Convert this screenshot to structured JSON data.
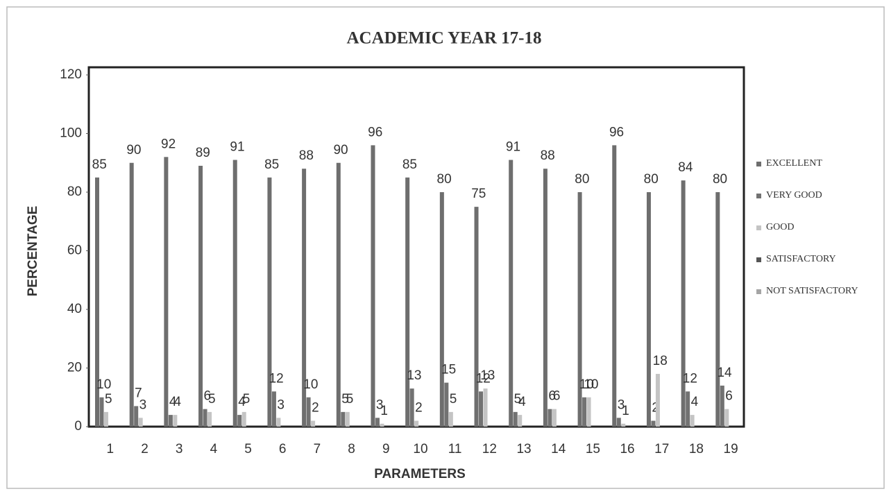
{
  "chart_data": {
    "type": "bar",
    "title": "ACADEMIC YEAR 17-18",
    "x_label": "PARAMETERS",
    "y_label": "PERCENTAGE",
    "categories": [
      "1",
      "2",
      "3",
      "4",
      "5",
      "6",
      "7",
      "8",
      "9",
      "10",
      "11",
      "12",
      "13",
      "14",
      "15",
      "16",
      "17",
      "18",
      "19"
    ],
    "series": [
      {
        "name": "EXCELLENT",
        "color": "#6e6e6e",
        "values": [
          85,
          90,
          92,
          89,
          91,
          85,
          88,
          90,
          96,
          85,
          80,
          75,
          91,
          88,
          80,
          96,
          80,
          84,
          80
        ]
      },
      {
        "name": "VERY GOOD",
        "color": "#727272",
        "values": [
          10,
          7,
          4,
          6,
          4,
          12,
          10,
          5,
          3,
          13,
          15,
          12,
          5,
          6,
          10,
          3,
          2,
          12,
          14
        ]
      },
      {
        "name": "GOOD",
        "color": "#c4c4c4",
        "values": [
          5,
          3,
          4,
          5,
          5,
          3,
          2,
          5,
          1,
          2,
          5,
          13,
          4,
          6,
          10,
          1,
          18,
          4,
          6
        ]
      },
      {
        "name": "SATISFACTORY",
        "color": "#555555",
        "values": [
          0,
          0,
          0,
          0,
          0,
          0,
          0,
          0,
          0,
          0,
          0,
          0,
          0,
          0,
          0,
          0,
          0,
          0,
          0
        ]
      },
      {
        "name": "NOT SATISFACTORY",
        "color": "#a5a5a5",
        "values": [
          0,
          0,
          0,
          0,
          0,
          0,
          0,
          0,
          0,
          0,
          0,
          0,
          0,
          0,
          0,
          0,
          0,
          0,
          0
        ]
      }
    ],
    "ylim": [
      0,
      120
    ],
    "yticks": [
      0,
      20,
      40,
      60,
      80,
      100,
      120
    ],
    "legend": "right"
  }
}
